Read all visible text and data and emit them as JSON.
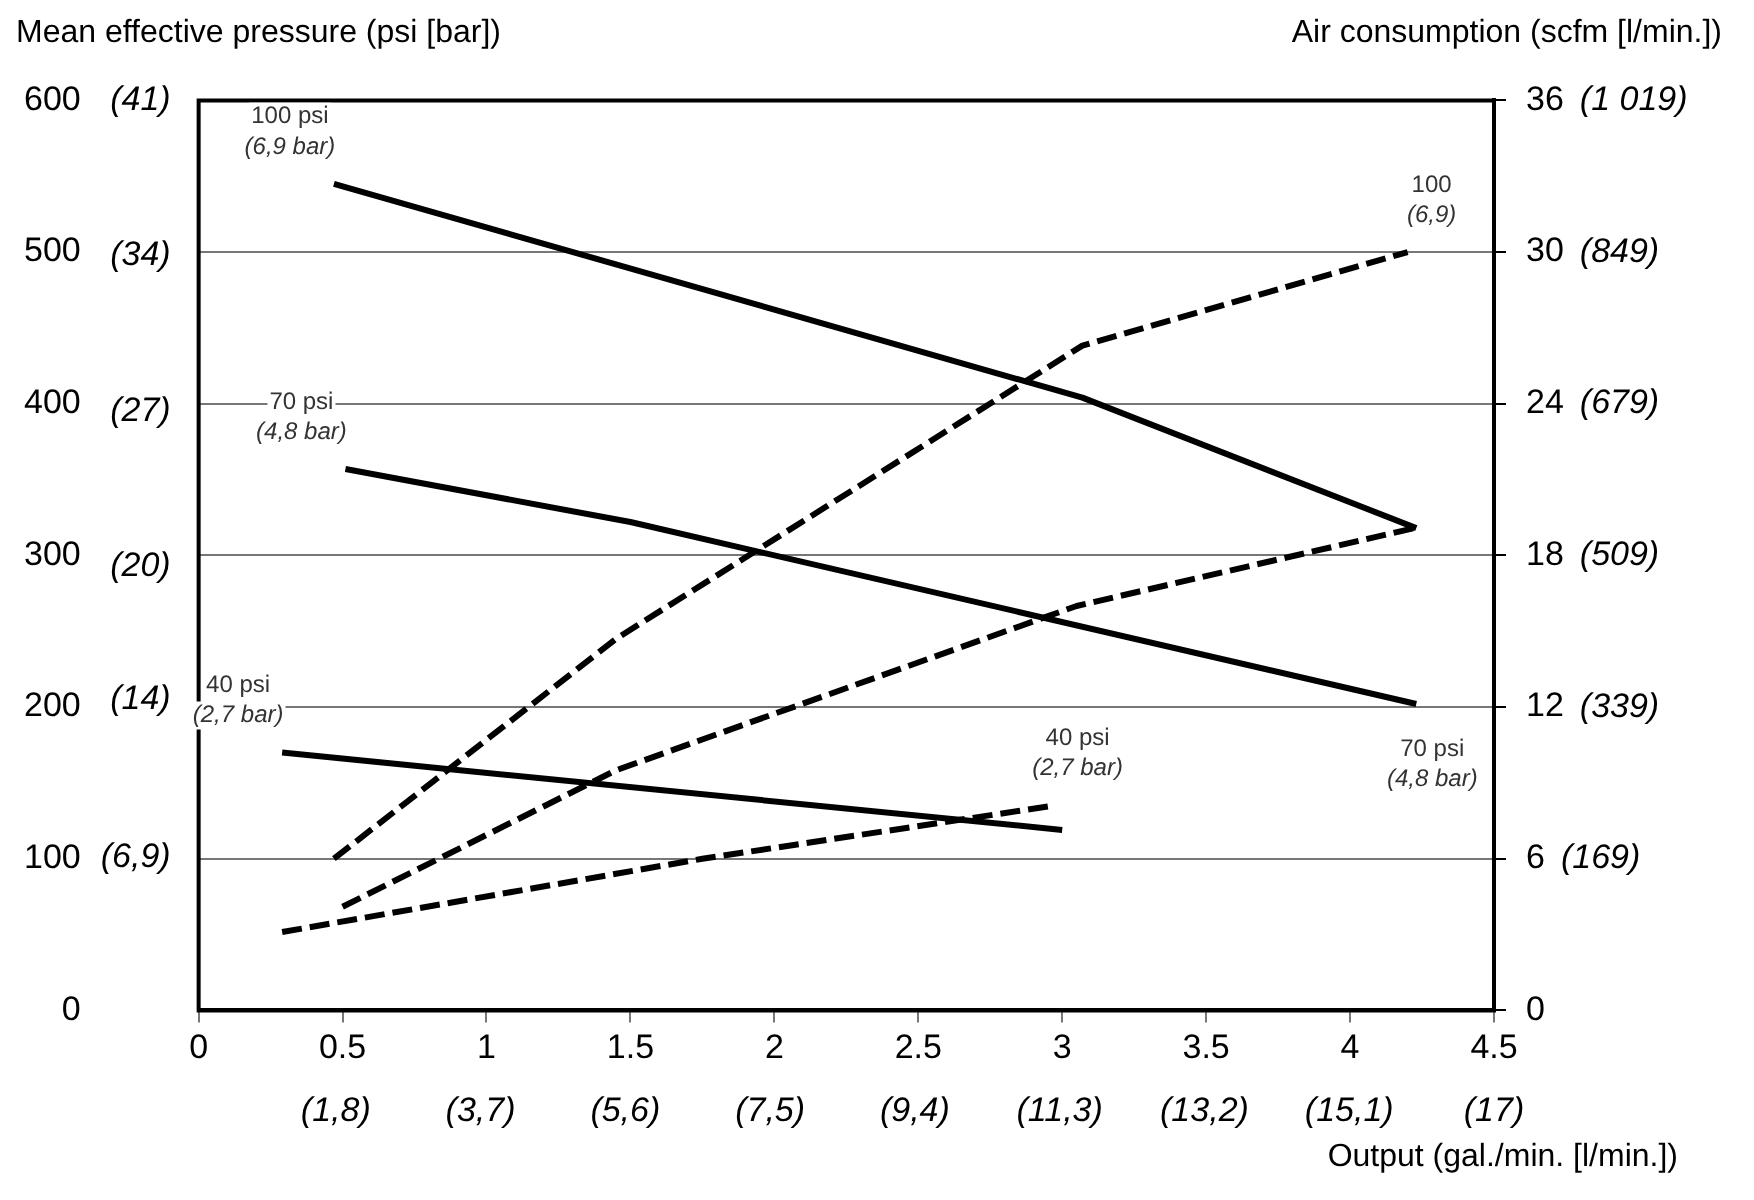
{
  "chart_data": {
    "type": "line",
    "ylabel": "Mean effective pressure (psi [bar])",
    "y2label": "Air consumption (scfm [l/min.])",
    "xlabel": "Output (gal./min. [l/min.])",
    "xlim": [
      0,
      4.5
    ],
    "xticks": [
      0,
      0.5,
      1,
      1.5,
      2,
      2.5,
      3,
      3.5,
      4,
      4.5
    ],
    "x2lim": [
      0,
      17
    ],
    "x2ticks": [
      {
        "value": 1.8,
        "label": "(1,8)"
      },
      {
        "value": 3.7,
        "label": "(3,7)"
      },
      {
        "value": 5.6,
        "label": "(5,6)"
      },
      {
        "value": 7.5,
        "label": "(7,5)"
      },
      {
        "value": 9.4,
        "label": "(9,4)"
      },
      {
        "value": 11.3,
        "label": "(11,3)"
      },
      {
        "value": 13.2,
        "label": "(13,2)"
      },
      {
        "value": 15.1,
        "label": "(15,1)"
      },
      {
        "value": 17,
        "label": "(17)"
      }
    ],
    "ylim": [
      0,
      600
    ],
    "yticks": [
      0,
      100,
      200,
      300,
      400,
      500,
      600
    ],
    "y3lim": [
      0,
      41
    ],
    "y3ticks": [
      {
        "value": 6.9,
        "label": "(6,9)"
      },
      {
        "value": 14,
        "label": "(14)"
      },
      {
        "value": 20,
        "label": "(20)"
      },
      {
        "value": 27,
        "label": "(27)"
      },
      {
        "value": 34,
        "label": "(34)"
      },
      {
        "value": 41,
        "label": "(41)"
      }
    ],
    "y2lim": [
      0,
      36
    ],
    "y2ticks": [
      0,
      6,
      12,
      18,
      24,
      30,
      36
    ],
    "grid": "y",
    "marker": "none",
    "series": [
      {
        "name": "100 psi (6,9 bar)",
        "color": "#000000",
        "line_style": "solid",
        "x": [
          0.47,
          3.07,
          4.23
        ],
        "values": [
          545,
          404,
          318
        ]
      },
      {
        "name": "70 psi (4,8 bar)",
        "color": "#000000",
        "line_style": "solid",
        "x": [
          0.51,
          1.5,
          4.23
        ],
        "values": [
          357,
          322,
          202
        ]
      },
      {
        "name": "40 psi (2,7 bar)",
        "color": "#000000",
        "line_style": "solid",
        "x": [
          0.29,
          3.0
        ],
        "values": [
          170,
          119
        ]
      },
      {
        "name": "100 (6,9)",
        "color": "#000000",
        "line_style": "dashed",
        "axis": "y2",
        "x": [
          0.47,
          1.45,
          3.07,
          4.2
        ],
        "values": [
          6,
          14.7,
          26.3,
          30
        ]
      },
      {
        "color": "#000000",
        "line_style": "dashed",
        "axis": "y2",
        "x": [
          0.5,
          1.45,
          3.05,
          4.23
        ],
        "values": [
          4.1,
          9.5,
          16,
          19.1
        ]
      },
      {
        "name": "40 psi (2,7 bar)",
        "color": "#000000",
        "line_style": "dashed",
        "axis": "y2",
        "x": [
          0.29,
          1.75,
          2.97
        ],
        "values": [
          3.1,
          6,
          8.1
        ]
      }
    ],
    "annotations": [
      "70 psi (4,8 bar)",
      "(169)",
      "(339)",
      "(509)",
      "(679)",
      "(849)",
      "(1 019)"
    ]
  }
}
